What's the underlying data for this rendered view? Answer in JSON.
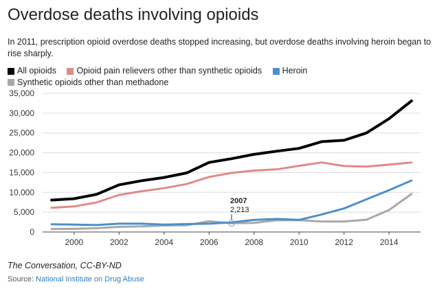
{
  "title": "Overdose deaths involving opioids",
  "subtitle": "In 2011, prescription opioid overdose deaths stopped increasing, but overdose deaths involving heroin began to rise sharply.",
  "credit": "The Conversation, CC-BY-ND",
  "source": {
    "label": "Source:",
    "link_text": "National Institute on Drug Abuse"
  },
  "chart_data": {
    "type": "line",
    "x": [
      1999,
      2000,
      2001,
      2002,
      2003,
      2004,
      2005,
      2006,
      2007,
      2008,
      2009,
      2010,
      2011,
      2012,
      2013,
      2014,
      2015
    ],
    "series": [
      {
        "name": "All opioids",
        "color": "#000000",
        "values": [
          8050,
          8400,
          9500,
          11900,
          12950,
          13750,
          14900,
          17550,
          18500,
          19600,
          20400,
          21100,
          22800,
          23150,
          25000,
          28600,
          33100
        ]
      },
      {
        "name": "Opioid pain relievers other than synthetic opioids",
        "color": "#e08a86",
        "values": [
          6100,
          6450,
          7450,
          9350,
          10300,
          11050,
          12100,
          13900,
          14900,
          15500,
          15800,
          16700,
          17550,
          16650,
          16500,
          17000,
          17550
        ]
      },
      {
        "name": "Heroin",
        "color": "#4b8fcc",
        "values": [
          1950,
          1850,
          1750,
          2100,
          2100,
          1850,
          2000,
          2100,
          2400,
          3050,
          3300,
          3050,
          4400,
          5950,
          8250,
          10550,
          13000
        ]
      },
      {
        "name": "Synthetic opioids other than methadone",
        "color": "#a8a8a8",
        "values": [
          750,
          800,
          950,
          1300,
          1400,
          1650,
          1700,
          2700,
          2213,
          2300,
          2950,
          3000,
          2650,
          2650,
          3100,
          5550,
          9600
        ]
      }
    ],
    "x_ticks": [
      "2000",
      "2002",
      "2004",
      "2006",
      "2008",
      "2010",
      "2012",
      "2014"
    ],
    "y_ticks": [
      "0",
      "5,000",
      "10,000",
      "15,000",
      "20,000",
      "25,000",
      "30,000",
      "35,000"
    ],
    "xlim": [
      1998.6,
      2015.4
    ],
    "ylim": [
      0,
      35000
    ],
    "grid": true,
    "annotation": {
      "x": 2007,
      "y": 2213,
      "year_label": "2007",
      "value_label": "2,213"
    }
  }
}
